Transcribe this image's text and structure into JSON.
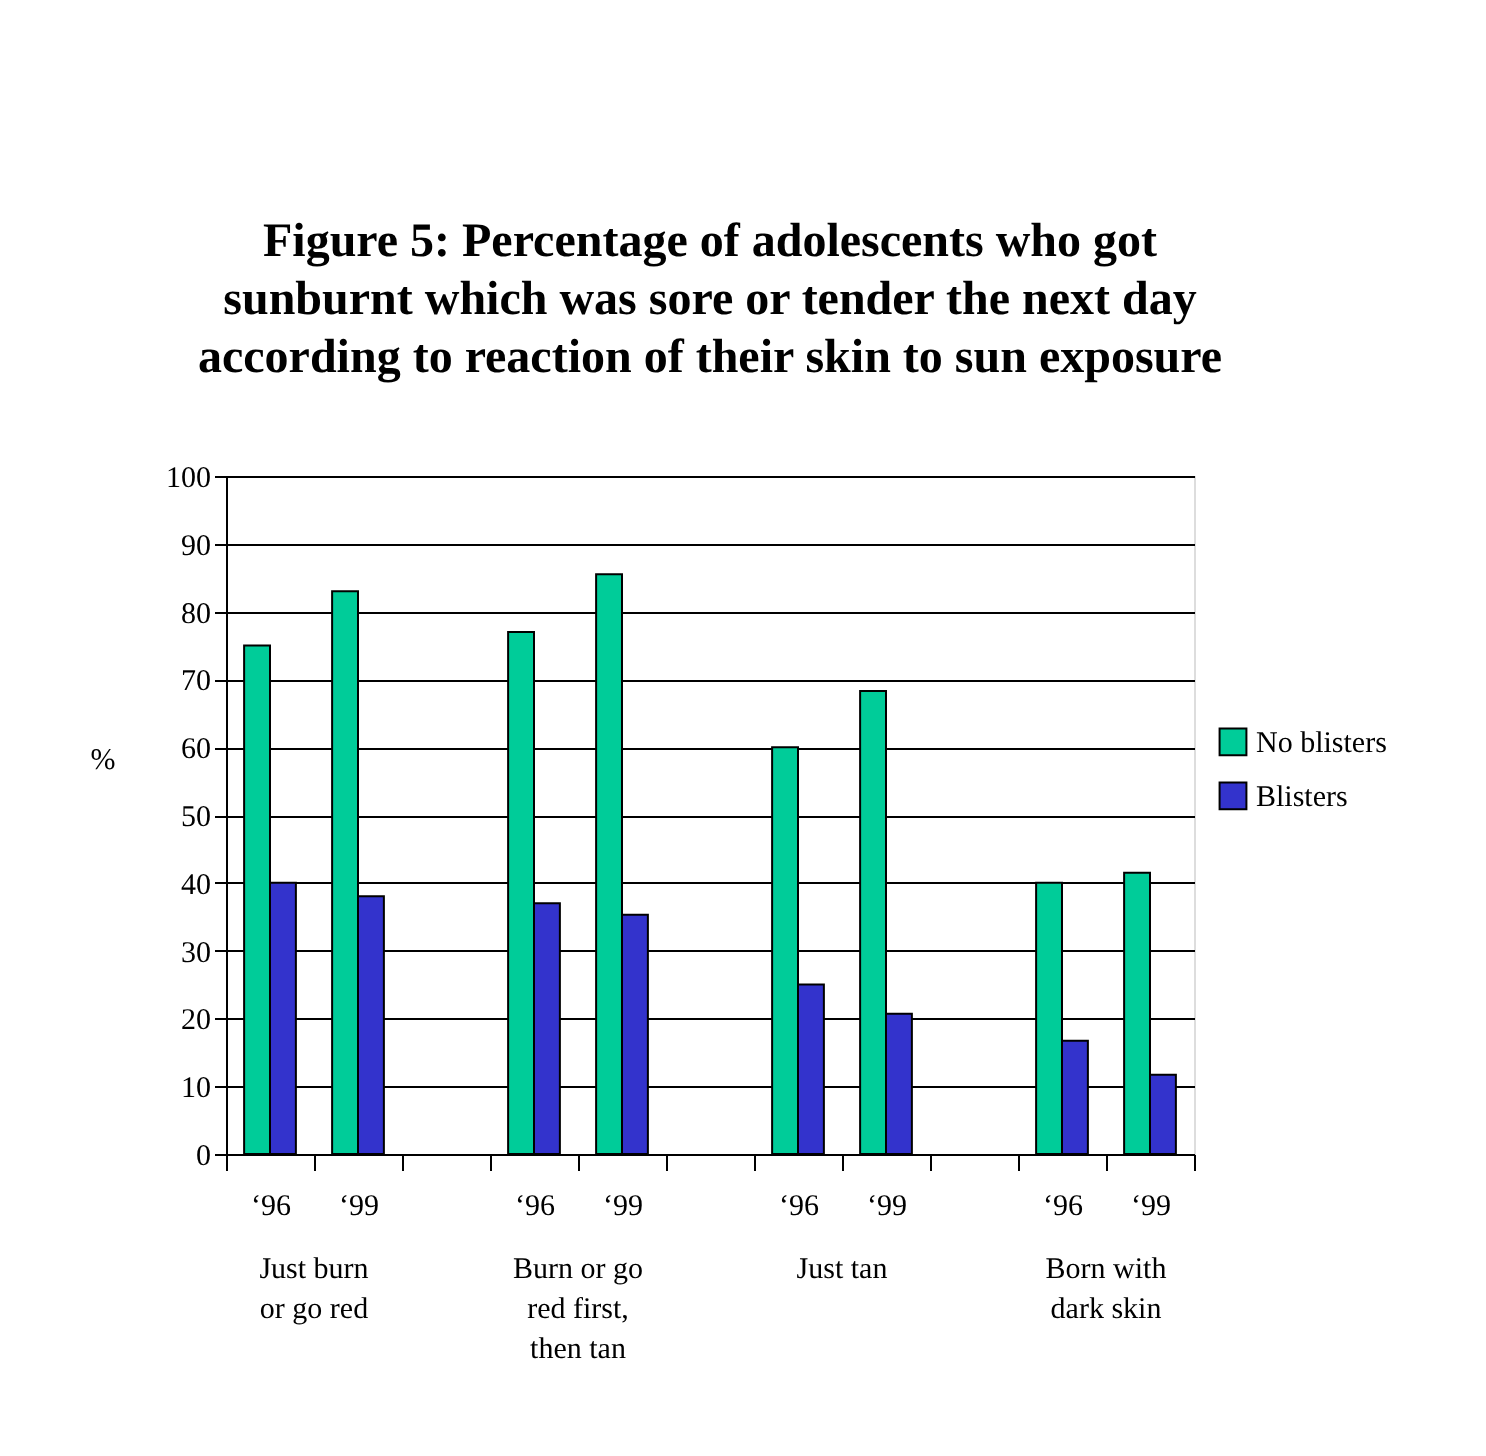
{
  "chart_data": {
    "type": "bar",
    "title": "Figure 5: Percentage of adolescents who got sunburnt which was sore or tender the next day according to reaction of their skin to sun exposure",
    "ylabel": "%",
    "categories": [
      "‘96",
      "‘99",
      null,
      "‘96",
      "‘99",
      null,
      "‘96",
      "‘99",
      null,
      "‘96",
      "‘99"
    ],
    "series": [
      {
        "name": "No blisters",
        "color": "#00cc99",
        "values": [
          75,
          83,
          null,
          77,
          85.5,
          null,
          60,
          68.3,
          null,
          40,
          41.5
        ]
      },
      {
        "name": "Blisters",
        "color": "#3333cc",
        "values": [
          40,
          38,
          null,
          37,
          35.3,
          null,
          25,
          20.7,
          null,
          16.7,
          11.7
        ]
      }
    ],
    "annotations": [
      "Just burn or go red",
      "Burn or go red first, then tan",
      "Just tan",
      "Born with dark skin"
    ],
    "ylim": [
      0,
      100
    ],
    "yticks": [
      0,
      10,
      20,
      30,
      40,
      50,
      60,
      70,
      80,
      90,
      100
    ],
    "grid": "y",
    "legend": "right"
  }
}
